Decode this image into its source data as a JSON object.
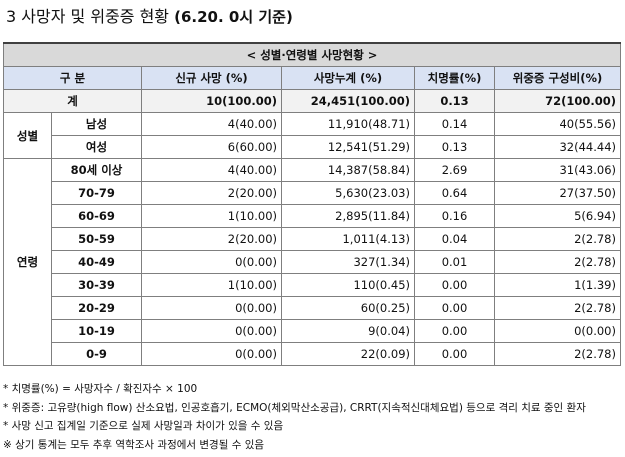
{
  "title": {
    "prefix": "3  사망자 및 위중증 현황",
    "date": "(6.20. 0시 기준)"
  },
  "table": {
    "caption": "< 성별·연령별 사망현황 >",
    "headers": {
      "group": "구 분",
      "new": "신규 사망      (%)",
      "cum": "사망누계        (%)",
      "cfr": "치명률(%)",
      "severe": "위중증    구성비(%)"
    },
    "total": {
      "label": "계",
      "new": "10(100.00)",
      "cum": "24,451(100.00)",
      "cfr": "0.13",
      "severe": "72(100.00)"
    },
    "sex_label": "성별",
    "sex_rows": [
      {
        "label": "남성",
        "new": "4(40.00)",
        "cum": "11,910(48.71)",
        "cfr": "0.14",
        "severe": "40(55.56)"
      },
      {
        "label": "여성",
        "new": "6(60.00)",
        "cum": "12,541(51.29)",
        "cfr": "0.13",
        "severe": "32(44.44)"
      }
    ],
    "age_label": "연령",
    "age_rows": [
      {
        "label": "80세 이상",
        "new": "4(40.00)",
        "cum": "14,387(58.84)",
        "cfr": "2.69",
        "severe": "31(43.06)"
      },
      {
        "label": "70-79",
        "new": "2(20.00)",
        "cum": "5,630(23.03)",
        "cfr": "0.64",
        "severe": "27(37.50)"
      },
      {
        "label": "60-69",
        "new": "1(10.00)",
        "cum": "2,895(11.84)",
        "cfr": "0.16",
        "severe": "5(6.94)"
      },
      {
        "label": "50-59",
        "new": "2(20.00)",
        "cum": "1,011(4.13)",
        "cfr": "0.04",
        "severe": "2(2.78)"
      },
      {
        "label": "40-49",
        "new": "0(0.00)",
        "cum": "327(1.34)",
        "cfr": "0.01",
        "severe": "2(2.78)"
      },
      {
        "label": "30-39",
        "new": "1(10.00)",
        "cum": "110(0.45)",
        "cfr": "0.00",
        "severe": "1(1.39)"
      },
      {
        "label": "20-29",
        "new": "0(0.00)",
        "cum": "60(0.25)",
        "cfr": "0.00",
        "severe": "2(2.78)"
      },
      {
        "label": "10-19",
        "new": "0(0.00)",
        "cum": "9(0.04)",
        "cfr": "0.00",
        "severe": "0(0.00)"
      },
      {
        "label": "0-9",
        "new": "0(0.00)",
        "cum": "22(0.09)",
        "cfr": "0.00",
        "severe": "2(2.78)"
      }
    ]
  },
  "notes": [
    "* 치명률(%) = 사망자수 / 확진자수 × 100",
    "* 위중증: 고유량(high flow) 산소요법, 인공호흡기, ECMO(체외막산소공급), CRRT(지속적신대체요법) 등으로 격리 치료 중인 환자",
    "* 사망 신고 집계일 기준으로 실제 사망일과 차이가 있을 수 있음",
    "※ 상기 통계는 모두 추후 역학조사 과정에서 변경될 수 있음"
  ]
}
